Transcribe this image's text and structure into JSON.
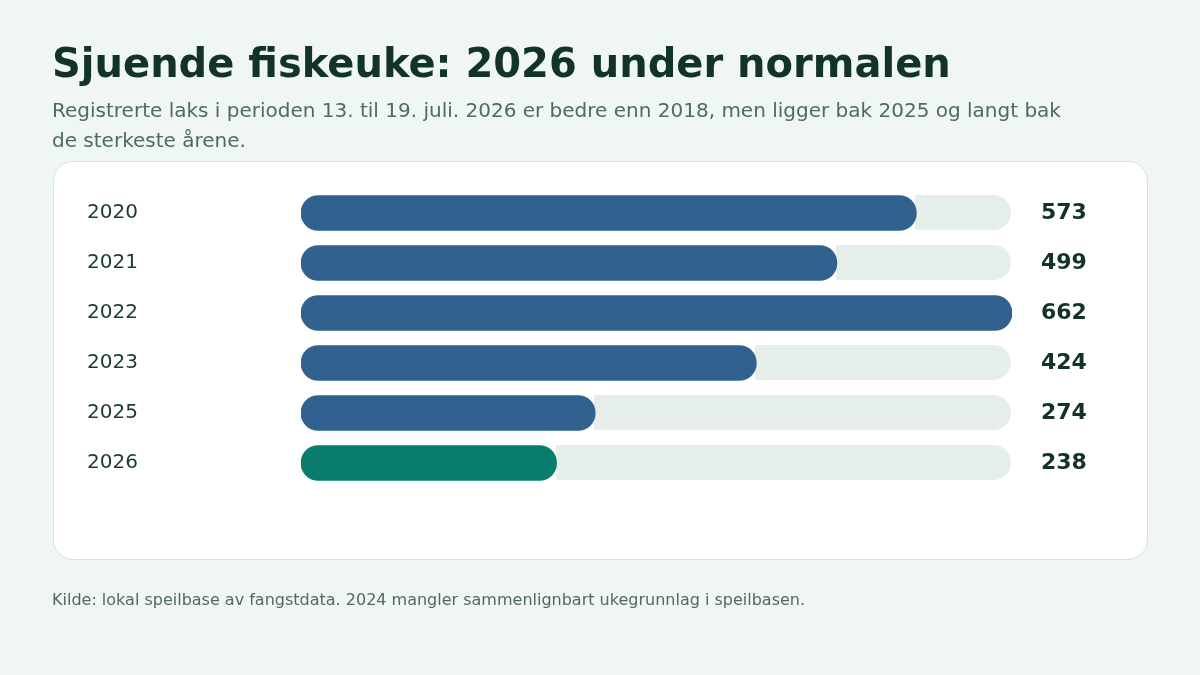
{
  "chart_data": {
    "type": "bar",
    "orientation": "horizontal",
    "title": "Sjuende fiskeuke: 2026 under normalen",
    "subtitle": "Registrerte laks i perioden 13. til 19. juli. 2026 er bedre enn 2018, men ligger bak 2025 og langt bak de sterkeste årene.",
    "categories": [
      "2020",
      "2021",
      "2022",
      "2023",
      "2025",
      "2026"
    ],
    "values": [
      573,
      499,
      662,
      424,
      274,
      238
    ],
    "colors": [
      "#31618f",
      "#31618f",
      "#31618f",
      "#31618f",
      "#31618f",
      "#0a7c6e"
    ],
    "data_labels": true,
    "legend": false,
    "annotations": [
      "Kilde: lokal speilbase av fangstdata. 2024 mangler sammenlignbart ukegrunnlag i speilbasen."
    ]
  }
}
